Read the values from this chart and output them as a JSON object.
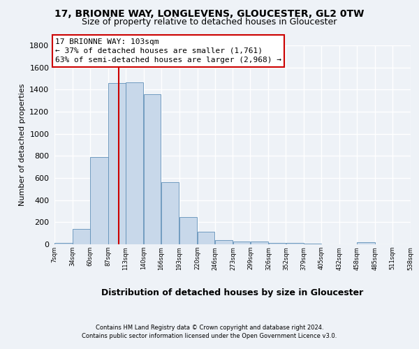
{
  "title1": "17, BRIONNE WAY, LONGLEVENS, GLOUCESTER, GL2 0TW",
  "title2": "Size of property relative to detached houses in Gloucester",
  "xlabel": "Distribution of detached houses by size in Gloucester",
  "ylabel": "Number of detached properties",
  "bar_color": "#c8d8ea",
  "bar_edge_color": "#6090b8",
  "vline_color": "#cc0000",
  "vline_x": 103,
  "annotation_text": "17 BRIONNE WAY: 103sqm\n← 37% of detached houses are smaller (1,761)\n63% of semi-detached houses are larger (2,968) →",
  "bin_edges": [
    7,
    34,
    60,
    87,
    113,
    140,
    166,
    193,
    220,
    246,
    273,
    299,
    326,
    352,
    379,
    405,
    432,
    458,
    485,
    511,
    538
  ],
  "bar_heights": [
    10,
    140,
    790,
    1460,
    1465,
    1360,
    565,
    245,
    115,
    35,
    25,
    25,
    15,
    15,
    5,
    0,
    0,
    20,
    0,
    0
  ],
  "tick_labels": [
    "7sqm",
    "34sqm",
    "60sqm",
    "87sqm",
    "113sqm",
    "140sqm",
    "166sqm",
    "193sqm",
    "220sqm",
    "246sqm",
    "273sqm",
    "299sqm",
    "326sqm",
    "352sqm",
    "379sqm",
    "405sqm",
    "432sqm",
    "458sqm",
    "485sqm",
    "511sqm",
    "538sqm"
  ],
  "ylim": [
    0,
    1800
  ],
  "yticks": [
    0,
    200,
    400,
    600,
    800,
    1000,
    1200,
    1400,
    1600,
    1800
  ],
  "footer1": "Contains HM Land Registry data © Crown copyright and database right 2024.",
  "footer2": "Contains public sector information licensed under the Open Government Licence v3.0.",
  "background_color": "#eef2f7",
  "grid_color": "#ffffff",
  "title1_fontsize": 10,
  "title2_fontsize": 9,
  "xlabel_fontsize": 9,
  "ylabel_fontsize": 8,
  "ytick_fontsize": 8,
  "xtick_fontsize": 6,
  "footer_fontsize": 6,
  "annotation_fontsize": 8
}
